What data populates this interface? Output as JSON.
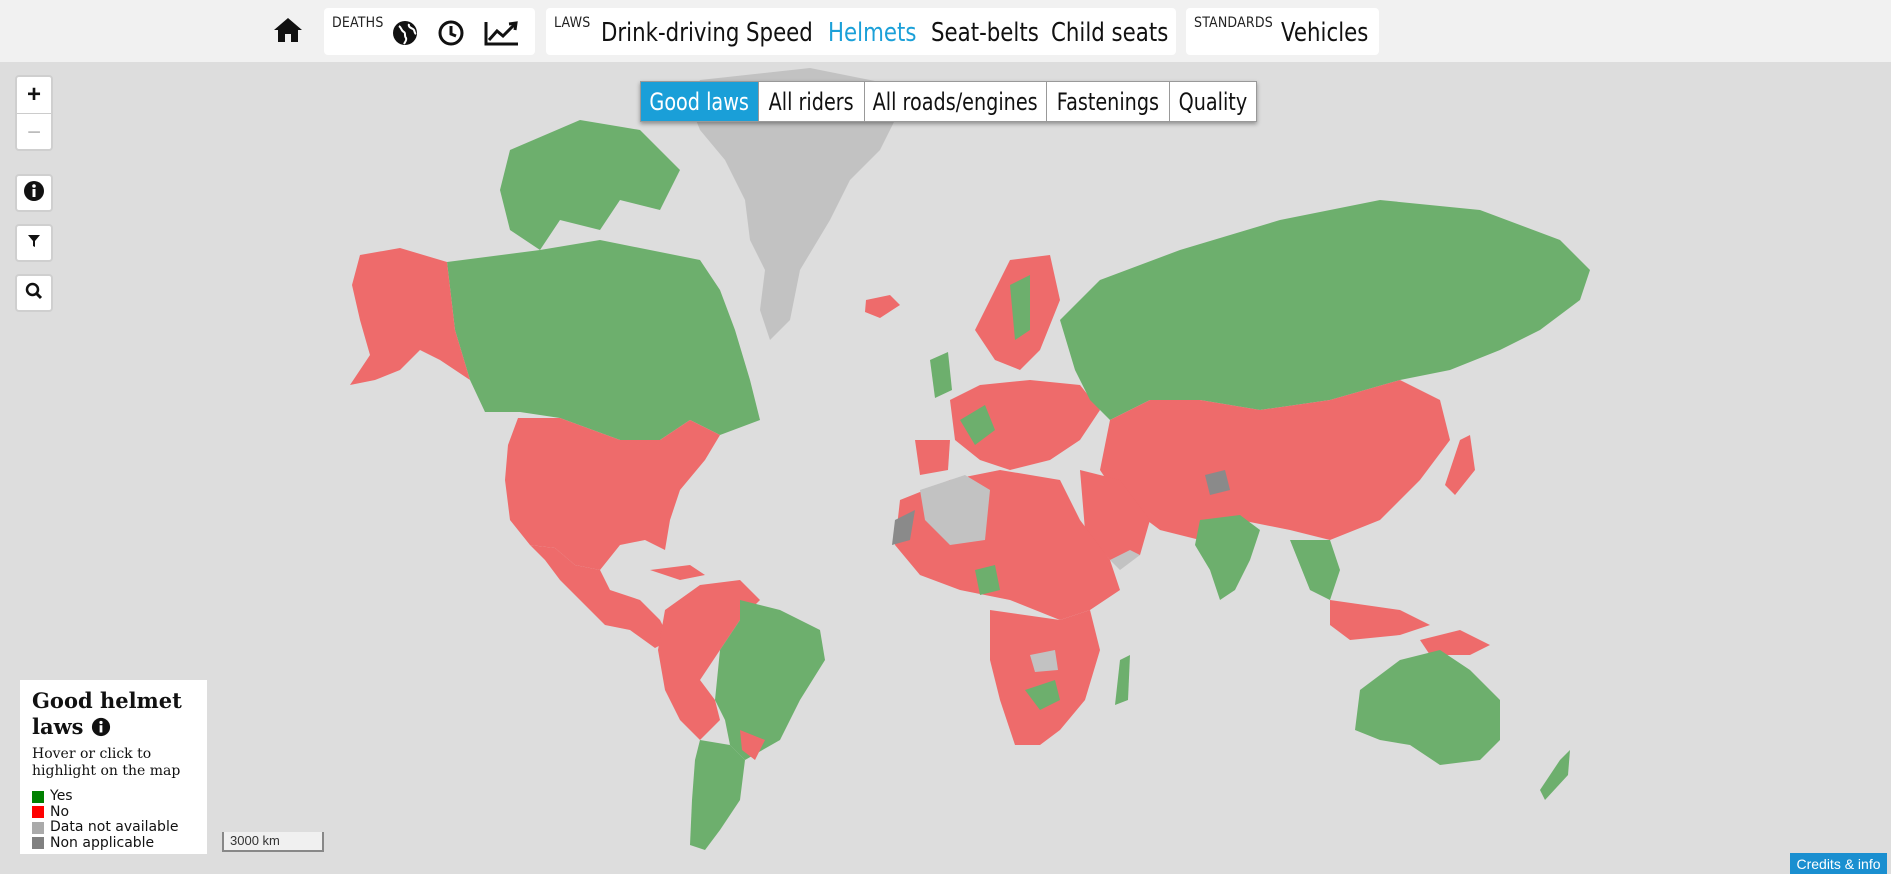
{
  "nav": {
    "deaths_label": "DEATHS",
    "laws_label": "LAWS",
    "laws_items": [
      "Drink-driving",
      "Speed",
      "Helmets",
      "Seat-belts",
      "Child seats"
    ],
    "active_law": "Helmets",
    "standards_label": "STANDARDS",
    "standards_items": [
      "Vehicles"
    ]
  },
  "tabs": [
    "Good laws",
    "All riders",
    "All roads/engines",
    "Fastenings",
    "Quality"
  ],
  "active_tab": "Good laws",
  "zoom": {
    "in": "+",
    "out": "−"
  },
  "legend": {
    "title": "Good helmet laws",
    "hint": "Hover or click to highlight on the map",
    "items": [
      {
        "label": "Yes",
        "color": "#008000"
      },
      {
        "label": "No",
        "color": "#ff0000"
      },
      {
        "label": "Data not available",
        "color": "#aaaaaa"
      },
      {
        "label": "Non applicable",
        "color": "#808080"
      }
    ]
  },
  "scale_label": "3000 km",
  "credits_label": "Credits & info",
  "colors": {
    "yes": "#6daf6d",
    "no": "#ee6b6b",
    "na": "#c2c2c2",
    "non_applicable": "#8a8a8a",
    "active": "#1ba0d8"
  }
}
